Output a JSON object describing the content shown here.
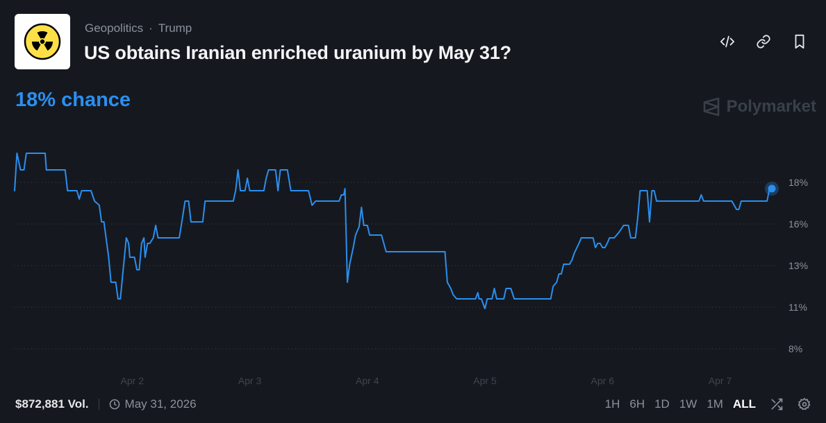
{
  "header": {
    "category": "Geopolitics",
    "separator": "·",
    "tag": "Trump",
    "title": "US obtains Iranian enriched uranium by May 31?",
    "thumbnail_icon": "radiation-icon",
    "actions": [
      "embed-icon",
      "link-icon",
      "bookmark-icon"
    ]
  },
  "chance_text": "18% chance",
  "watermark": "Polymarket",
  "colors": {
    "background": "#15191f",
    "line": "#2b8ff0",
    "muted_text": "#8b919b"
  },
  "chart_data": {
    "type": "line",
    "xlabel": "",
    "ylabel": "",
    "x_tick_labels": [
      "Apr 2",
      "Apr 3",
      "Apr 4",
      "Apr 5",
      "Apr 6",
      "Apr 7"
    ],
    "x_ticks": [
      2,
      3,
      4,
      5,
      6,
      7
    ],
    "y_tick_labels": [
      "18%",
      "16%",
      "13%",
      "11%",
      "8%"
    ],
    "y_ticks": [
      18,
      16,
      13,
      11,
      8
    ],
    "ylim": [
      8,
      18
    ],
    "xlim": [
      1.0,
      7.44
    ],
    "grid": "horizontal-dotted",
    "end_marker": true,
    "series": [
      {
        "values": [
          [
            1.0,
            17.6
          ],
          [
            1.02,
            19.4
          ],
          [
            1.05,
            18.6
          ],
          [
            1.08,
            18.6
          ],
          [
            1.1,
            19.4
          ],
          [
            1.26,
            19.4
          ],
          [
            1.27,
            18.6
          ],
          [
            1.43,
            18.6
          ],
          [
            1.45,
            17.6
          ],
          [
            1.53,
            17.6
          ],
          [
            1.55,
            17.2
          ],
          [
            1.57,
            17.6
          ],
          [
            1.65,
            17.6
          ],
          [
            1.68,
            17.1
          ],
          [
            1.72,
            16.9
          ],
          [
            1.74,
            16.1
          ],
          [
            1.76,
            16.1
          ],
          [
            1.8,
            13.6
          ],
          [
            1.82,
            12.2
          ],
          [
            1.86,
            12.2
          ],
          [
            1.88,
            11.4
          ],
          [
            1.9,
            11.4
          ],
          [
            1.92,
            12.6
          ],
          [
            1.95,
            15.0
          ],
          [
            1.97,
            14.6
          ],
          [
            1.98,
            13.6
          ],
          [
            2.02,
            13.6
          ],
          [
            2.04,
            12.8
          ],
          [
            2.06,
            12.8
          ],
          [
            2.08,
            14.6
          ],
          [
            2.1,
            15.0
          ],
          [
            2.11,
            13.6
          ],
          [
            2.13,
            14.6
          ],
          [
            2.15,
            14.6
          ],
          [
            2.18,
            15.0
          ],
          [
            2.2,
            15.9
          ],
          [
            2.22,
            15.0
          ],
          [
            2.4,
            15.0
          ],
          [
            2.42,
            16.0
          ],
          [
            2.45,
            17.1
          ],
          [
            2.48,
            17.1
          ],
          [
            2.5,
            16.1
          ],
          [
            2.6,
            16.1
          ],
          [
            2.62,
            17.1
          ],
          [
            2.86,
            17.1
          ],
          [
            2.88,
            17.6
          ],
          [
            2.9,
            18.6
          ],
          [
            2.92,
            17.6
          ],
          [
            2.96,
            17.6
          ],
          [
            2.98,
            18.2
          ],
          [
            3.0,
            17.6
          ],
          [
            3.12,
            17.6
          ],
          [
            3.14,
            18.2
          ],
          [
            3.16,
            18.6
          ],
          [
            3.22,
            18.6
          ],
          [
            3.24,
            17.6
          ],
          [
            3.26,
            18.6
          ],
          [
            3.32,
            18.6
          ],
          [
            3.35,
            17.6
          ],
          [
            3.5,
            17.6
          ],
          [
            3.53,
            16.9
          ],
          [
            3.56,
            17.1
          ],
          [
            3.76,
            17.1
          ],
          [
            3.78,
            17.4
          ],
          [
            3.8,
            17.4
          ],
          [
            3.81,
            17.7
          ],
          [
            3.82,
            15.2
          ],
          [
            3.83,
            12.2
          ],
          [
            3.85,
            13.1
          ],
          [
            3.88,
            14.3
          ],
          [
            3.9,
            15.2
          ],
          [
            3.93,
            15.8
          ],
          [
            3.95,
            16.8
          ],
          [
            3.97,
            15.9
          ],
          [
            4.0,
            15.9
          ],
          [
            4.02,
            15.2
          ],
          [
            4.12,
            15.2
          ],
          [
            4.14,
            14.6
          ],
          [
            4.16,
            14.0
          ],
          [
            4.4,
            14.0
          ],
          [
            4.66,
            14.0
          ],
          [
            4.68,
            12.2
          ],
          [
            4.71,
            11.9
          ],
          [
            4.73,
            11.6
          ],
          [
            4.76,
            11.4
          ],
          [
            4.92,
            11.4
          ],
          [
            4.94,
            11.7
          ],
          [
            4.95,
            11.4
          ],
          [
            4.97,
            11.4
          ],
          [
            5.0,
            10.9
          ],
          [
            5.02,
            11.4
          ],
          [
            5.06,
            11.4
          ],
          [
            5.08,
            11.9
          ],
          [
            5.1,
            11.4
          ],
          [
            5.16,
            11.4
          ],
          [
            5.18,
            11.9
          ],
          [
            5.22,
            11.9
          ],
          [
            5.25,
            11.4
          ],
          [
            5.56,
            11.4
          ],
          [
            5.58,
            12.0
          ],
          [
            5.61,
            12.2
          ],
          [
            5.63,
            12.6
          ],
          [
            5.65,
            12.6
          ],
          [
            5.67,
            13.1
          ],
          [
            5.72,
            13.1
          ],
          [
            5.74,
            13.4
          ],
          [
            5.76,
            13.9
          ],
          [
            5.8,
            14.6
          ],
          [
            5.82,
            15.0
          ],
          [
            5.92,
            15.0
          ],
          [
            5.94,
            14.3
          ],
          [
            5.96,
            14.6
          ],
          [
            5.98,
            14.6
          ],
          [
            6.0,
            14.3
          ],
          [
            6.02,
            14.3
          ],
          [
            6.04,
            14.6
          ],
          [
            6.06,
            15.0
          ],
          [
            6.1,
            15.0
          ],
          [
            6.14,
            15.4
          ],
          [
            6.18,
            15.9
          ],
          [
            6.22,
            15.9
          ],
          [
            6.24,
            15.0
          ],
          [
            6.28,
            15.0
          ],
          [
            6.3,
            16.3
          ],
          [
            6.32,
            17.6
          ],
          [
            6.38,
            17.6
          ],
          [
            6.4,
            16.1
          ],
          [
            6.42,
            17.6
          ],
          [
            6.44,
            17.6
          ],
          [
            6.46,
            17.1
          ],
          [
            6.7,
            17.1
          ],
          [
            6.82,
            17.1
          ],
          [
            6.84,
            17.4
          ],
          [
            6.86,
            17.1
          ],
          [
            7.1,
            17.1
          ],
          [
            7.14,
            16.7
          ],
          [
            7.16,
            16.7
          ],
          [
            7.18,
            17.1
          ],
          [
            7.4,
            17.1
          ],
          [
            7.42,
            17.7
          ],
          [
            7.44,
            17.7
          ]
        ]
      }
    ]
  },
  "footer": {
    "volume": "$872,881 Vol.",
    "end_date": "May 31, 2026",
    "ranges": [
      "1H",
      "6H",
      "1D",
      "1W",
      "1M",
      "ALL"
    ],
    "active_range": "ALL"
  }
}
